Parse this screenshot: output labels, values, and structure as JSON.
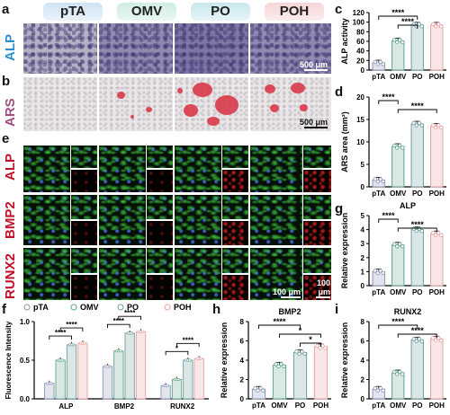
{
  "panel_letters": {
    "a": "a",
    "b": "b",
    "c": "c",
    "d": "d",
    "e": "e",
    "f": "f",
    "g": "g",
    "h": "h",
    "i": "i"
  },
  "groups": [
    "pTA",
    "OMV",
    "PO",
    "POH"
  ],
  "group_colors": {
    "pTA": "#8a96b8",
    "OMV": "#5fa58a",
    "PO": "#6f9e9e",
    "POH": "#e8a0a0"
  },
  "row_labels": {
    "alp": "ALP",
    "ars": "ARS",
    "e_alp": "ALP",
    "e_bmp2": "BMP2",
    "e_runx2": "RUNX2"
  },
  "row_label_colors": {
    "alp": "#2a8fd0",
    "ars": "#a05080",
    "e_alp": "#c0102a",
    "e_bmp2": "#c0102a",
    "e_runx2": "#c0102a"
  },
  "scalebars": {
    "a": "500 μm",
    "b": "500 μm",
    "e_main": "100 μm",
    "e_inset": "100 μm"
  },
  "chart_data": [
    {
      "panel": "c",
      "type": "bar",
      "categories": [
        "pTA",
        "OMV",
        "PO",
        "POH"
      ],
      "values": [
        15,
        61,
        94,
        94
      ],
      "ylabel": "ALP activity",
      "ylim": [
        0,
        120
      ],
      "yticks": [
        0,
        20,
        40,
        60,
        80,
        100,
        120
      ],
      "significance": [
        {
          "from": "pTA",
          "to": "PO",
          "label": "****"
        },
        {
          "from": "OMV",
          "to": "PO",
          "label": "****"
        }
      ]
    },
    {
      "panel": "d",
      "type": "bar",
      "categories": [
        "pTA",
        "OMV",
        "PO",
        "POH"
      ],
      "values": [
        1.5,
        9,
        14,
        13.5
      ],
      "ylabel": "ARS area (mm²)",
      "ylim": [
        0,
        20
      ],
      "yticks": [
        0,
        5,
        10,
        15,
        20
      ],
      "significance": [
        {
          "from": "pTA",
          "to": "OMV",
          "label": "****"
        },
        {
          "from": "OMV",
          "to": "POH",
          "label": "****"
        }
      ]
    },
    {
      "panel": "g",
      "title": "ALP",
      "type": "bar",
      "categories": [
        "pTA",
        "OMV",
        "PO",
        "POH"
      ],
      "values": [
        1,
        2.9,
        4,
        3.7
      ],
      "ylabel": "Relative expression",
      "ylim": [
        0,
        5
      ],
      "yticks": [
        0,
        1,
        2,
        3,
        4,
        5
      ],
      "significance": [
        {
          "from": "pTA",
          "to": "OMV",
          "label": "****"
        },
        {
          "from": "OMV",
          "to": "POH",
          "label": "****"
        }
      ]
    },
    {
      "panel": "h",
      "title": "BMP2",
      "type": "bar",
      "categories": [
        "pTA",
        "OMV",
        "PO",
        "POH"
      ],
      "values": [
        1,
        3.5,
        4.8,
        5.4
      ],
      "ylabel": "Relative expression",
      "ylim": [
        0,
        8
      ],
      "yticks": [
        0,
        2,
        4,
        6,
        8
      ],
      "significance": [
        {
          "from": "pTA",
          "to": "PO",
          "label": "****"
        },
        {
          "from": "OMV",
          "to": "POH",
          "label": "*"
        },
        {
          "from": "PO",
          "to": "POH",
          "label": "*"
        }
      ]
    },
    {
      "panel": "i",
      "title": "RUNX2",
      "type": "bar",
      "categories": [
        "pTA",
        "OMV",
        "PO",
        "POH"
      ],
      "values": [
        1,
        2.7,
        6.1,
        6.2
      ],
      "ylabel": "Relative expression",
      "ylim": [
        0,
        8
      ],
      "yticks": [
        0,
        2,
        4,
        6,
        8
      ],
      "significance": [
        {
          "from": "pTA",
          "to": "PO",
          "label": "****"
        },
        {
          "from": "OMV",
          "to": "POH",
          "label": "****"
        }
      ]
    },
    {
      "panel": "f",
      "type": "bar",
      "categories": [
        "ALP",
        "BMP2",
        "RUNX2"
      ],
      "ylabel": "Fluorescence Intensity",
      "ylim": [
        0,
        1.0
      ],
      "yticks": [
        0,
        0.5,
        1.0
      ],
      "legend": [
        "pTA",
        "OMV",
        "PO",
        "POH"
      ],
      "series": [
        {
          "name": "pTA",
          "values": [
            0.2,
            0.42,
            0.17
          ]
        },
        {
          "name": "OMV",
          "values": [
            0.5,
            0.62,
            0.25
          ]
        },
        {
          "name": "PO",
          "values": [
            0.7,
            0.85,
            0.5
          ]
        },
        {
          "name": "POH",
          "values": [
            0.72,
            0.87,
            0.52
          ]
        }
      ],
      "significance": [
        {
          "category": "ALP",
          "label": "****"
        },
        {
          "category": "ALP",
          "label": "****"
        },
        {
          "category": "BMP2",
          "label": "****"
        },
        {
          "category": "BMP2",
          "label": "****"
        },
        {
          "category": "RUNX2",
          "label": "*"
        },
        {
          "category": "RUNX2",
          "label": "****"
        }
      ]
    }
  ]
}
